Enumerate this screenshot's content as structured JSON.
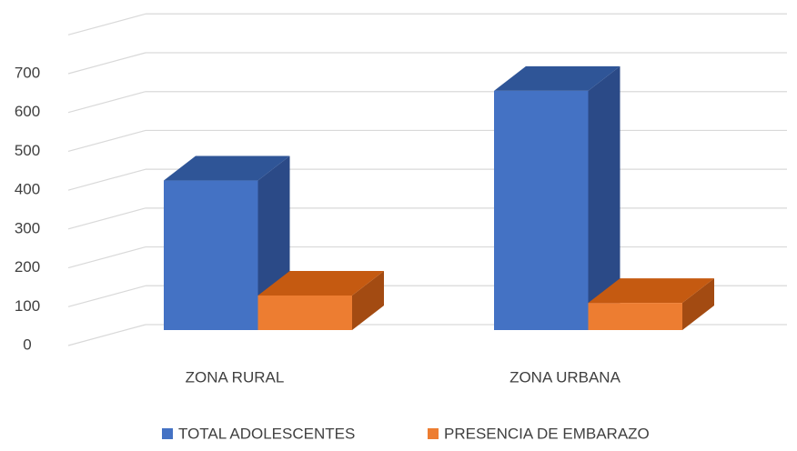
{
  "chart_data": {
    "type": "bar3d",
    "categories": [
      "ZONA RURAL",
      "ZONA URBANA"
    ],
    "series": [
      {
        "name": "TOTAL ADOLESCENTES",
        "color": "#4472c4",
        "top": "#2f5597",
        "side": "#2b4a87",
        "values": [
          385,
          616
        ]
      },
      {
        "name": "PRESENCIA DE EMBARAZO",
        "color": "#ed7d31",
        "top": "#c55a11",
        "side": "#a34b12",
        "values": [
          89,
          70
        ]
      }
    ],
    "ylim": [
      0,
      800
    ],
    "yticks": [
      0,
      100,
      200,
      300,
      400,
      500,
      600,
      700
    ],
    "grid": true,
    "legend": "bottom"
  }
}
